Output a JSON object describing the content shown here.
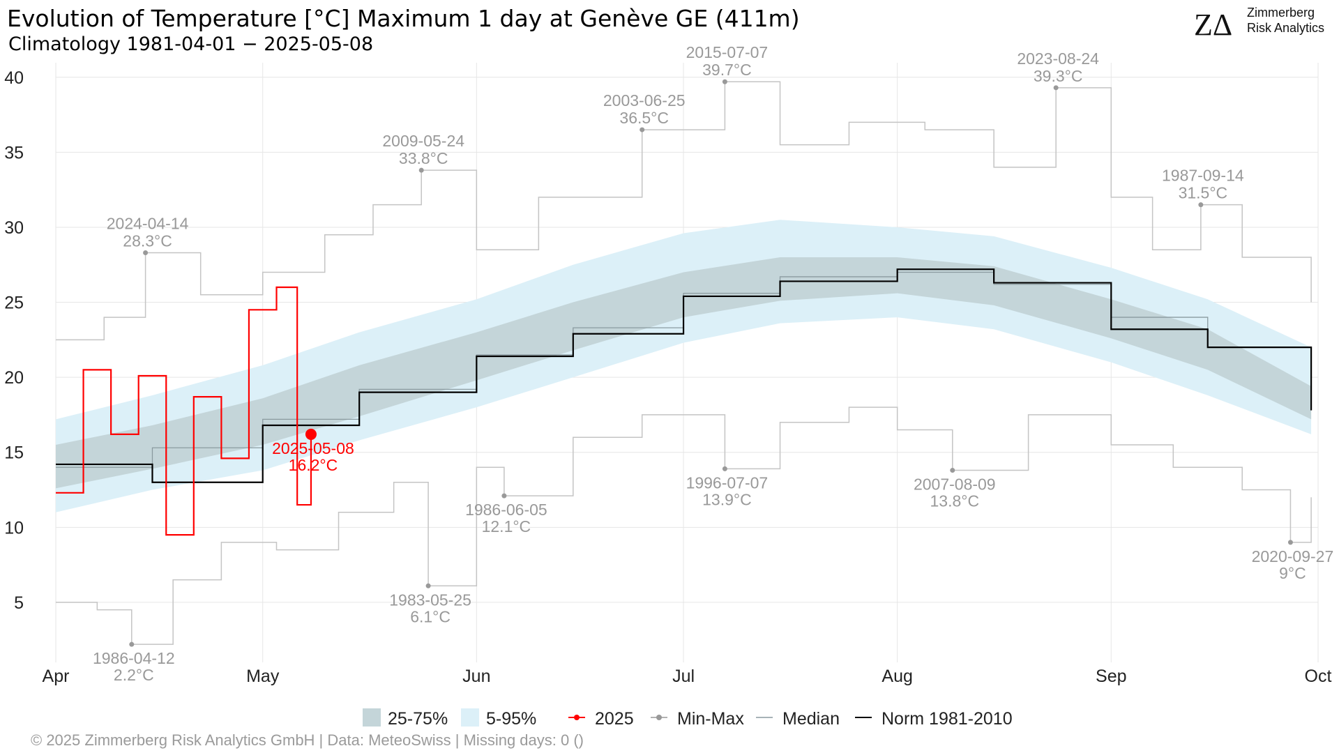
{
  "header": {
    "title": "Evolution of Temperature [°C] Maximum 1 day at Genève  GE (411m)",
    "subtitle": "Climatology 1981-04-01 − 2025-05-08",
    "logo_mark": "ZΔ",
    "logo_line1": "Zimmerberg",
    "logo_line2": "Risk Analytics"
  },
  "footer": {
    "caption": "©  2025 Zimmerberg Risk Analytics GmbH | Data: MeteoSwiss | Missing days: 0 ()"
  },
  "colors": {
    "band_25_75": "#c4d5d9",
    "band_5_95": "#dcf0f8",
    "current_year": "#ff0000",
    "minmax": "#c4c4c4",
    "minmax_dot": "#999999",
    "median": "#8a9a9f",
    "norm": "#000000",
    "annotation_text": "#999999",
    "grid": "#e6e6e6"
  },
  "chart_data": {
    "type": "line",
    "title": "Evolution of Temperature [°C] Maximum 1 day at Genève  GE (411m)",
    "subtitle": "Climatology 1981-04-01 − 2025-05-08",
    "xlabel": "",
    "ylabel": "",
    "x_range": [
      "2025-04-01",
      "2025-10-01"
    ],
    "ylim": [
      1,
      40.5
    ],
    "y_ticks": [
      5,
      10,
      15,
      20,
      25,
      30,
      35,
      40
    ],
    "x_ticks": [
      {
        "date": "2025-04-01",
        "label": "Apr"
      },
      {
        "date": "2025-05-01",
        "label": "May"
      },
      {
        "date": "2025-06-01",
        "label": "Jun"
      },
      {
        "date": "2025-07-01",
        "label": "Jul"
      },
      {
        "date": "2025-08-01",
        "label": "Aug"
      },
      {
        "date": "2025-09-01",
        "label": "Sep"
      },
      {
        "date": "2025-10-01",
        "label": "Oct"
      }
    ],
    "grid": true,
    "legend_position": "bottom",
    "legend": [
      {
        "key": "band_25_75",
        "label": "25-75%"
      },
      {
        "key": "band_5_95",
        "label": "5-95%"
      },
      {
        "key": "current",
        "label": "2025"
      },
      {
        "key": "minmax",
        "label": "Min-Max"
      },
      {
        "key": "median",
        "label": "Median"
      },
      {
        "key": "norm",
        "label": "Norm 1981-2010"
      }
    ],
    "series": [
      {
        "key": "current",
        "name": "2025",
        "x": [
          "2025-04-01",
          "2025-04-05",
          "2025-04-09",
          "2025-04-13",
          "2025-04-17",
          "2025-04-21",
          "2025-04-25",
          "2025-04-29",
          "2025-05-03",
          "2025-05-06",
          "2025-05-08"
        ],
        "y": [
          12.3,
          20.5,
          16.2,
          20.1,
          9.5,
          18.7,
          14.6,
          24.5,
          26.0,
          11.5,
          16.2
        ]
      },
      {
        "key": "norm",
        "name": "Norm 1981-2010",
        "x": [
          "2025-04-01",
          "2025-04-15",
          "2025-05-01",
          "2025-05-15",
          "2025-06-01",
          "2025-06-15",
          "2025-07-01",
          "2025-07-15",
          "2025-08-01",
          "2025-08-15",
          "2025-09-01",
          "2025-09-15",
          "2025-09-30"
        ],
        "y": [
          14.2,
          13.0,
          16.8,
          19.0,
          21.4,
          22.9,
          25.4,
          26.4,
          27.2,
          26.3,
          23.2,
          22.0,
          17.8
        ]
      },
      {
        "key": "median",
        "name": "Median",
        "x": [
          "2025-04-01",
          "2025-04-15",
          "2025-05-01",
          "2025-05-15",
          "2025-06-01",
          "2025-06-15",
          "2025-07-01",
          "2025-07-15",
          "2025-08-01",
          "2025-08-15",
          "2025-09-01",
          "2025-09-15",
          "2025-09-30"
        ],
        "y": [
          14.0,
          15.3,
          17.2,
          19.2,
          21.5,
          23.3,
          25.6,
          26.7,
          27.0,
          26.2,
          24.0,
          22.0,
          18.7
        ]
      },
      {
        "key": "max",
        "name": "Max",
        "x": [
          "2025-04-01",
          "2025-04-08",
          "2025-04-14",
          "2025-04-22",
          "2025-05-01",
          "2025-05-10",
          "2025-05-17",
          "2025-05-24",
          "2025-06-01",
          "2025-06-10",
          "2025-06-25",
          "2025-07-07",
          "2025-07-15",
          "2025-07-25",
          "2025-08-05",
          "2025-08-15",
          "2025-08-24",
          "2025-09-01",
          "2025-09-07",
          "2025-09-14",
          "2025-09-20",
          "2025-09-30"
        ],
        "y": [
          22.5,
          24.0,
          28.3,
          25.5,
          27.0,
          29.5,
          31.5,
          33.8,
          28.5,
          32.0,
          36.5,
          39.7,
          35.5,
          37.0,
          36.5,
          34.0,
          39.3,
          32.0,
          28.5,
          31.5,
          28.0,
          25.0
        ]
      },
      {
        "key": "min",
        "name": "Min",
        "x": [
          "2025-04-01",
          "2025-04-07",
          "2025-04-12",
          "2025-04-18",
          "2025-04-25",
          "2025-05-03",
          "2025-05-12",
          "2025-05-20",
          "2025-05-25",
          "2025-06-01",
          "2025-06-05",
          "2025-06-15",
          "2025-06-25",
          "2025-07-07",
          "2025-07-15",
          "2025-07-25",
          "2025-08-01",
          "2025-08-09",
          "2025-08-20",
          "2025-09-01",
          "2025-09-10",
          "2025-09-20",
          "2025-09-27",
          "2025-09-30"
        ],
        "y": [
          5.0,
          4.5,
          2.2,
          6.5,
          9.0,
          8.5,
          11.0,
          13.0,
          6.1,
          14.0,
          12.1,
          16.0,
          17.5,
          13.9,
          17.0,
          18.0,
          16.5,
          13.8,
          17.5,
          15.5,
          14.0,
          12.5,
          9.0,
          12.0
        ]
      }
    ],
    "bands": {
      "x": [
        "2025-04-01",
        "2025-04-15",
        "2025-05-01",
        "2025-05-15",
        "2025-06-01",
        "2025-06-15",
        "2025-07-01",
        "2025-07-15",
        "2025-08-01",
        "2025-08-15",
        "2025-09-01",
        "2025-09-15",
        "2025-09-30"
      ],
      "p05": [
        11.0,
        12.5,
        13.8,
        15.8,
        18.0,
        20.0,
        22.3,
        23.6,
        24.0,
        23.2,
        21.0,
        18.8,
        16.2
      ],
      "p25": [
        12.6,
        13.9,
        15.5,
        17.4,
        19.8,
        21.8,
        24.0,
        25.1,
        25.6,
        24.8,
        22.6,
        20.5,
        17.2
      ],
      "p75": [
        15.5,
        16.8,
        18.6,
        20.8,
        23.0,
        25.0,
        27.0,
        28.0,
        28.0,
        27.4,
        25.2,
        23.2,
        19.4
      ],
      "p95": [
        17.2,
        18.8,
        20.8,
        23.0,
        25.2,
        27.5,
        29.6,
        30.5,
        30.0,
        29.4,
        27.3,
        25.2,
        22.0
      ]
    },
    "annotations": [
      {
        "date": "2024-04-14",
        "value": "28.3°C",
        "x": "2025-04-14",
        "y": 28.3,
        "pos": "above",
        "color": "#999999"
      },
      {
        "date": "2009-05-24",
        "value": "33.8°C",
        "x": "2025-05-24",
        "y": 33.8,
        "pos": "above",
        "color": "#999999"
      },
      {
        "date": "2003-06-25",
        "value": "36.5°C",
        "x": "2025-06-25",
        "y": 36.5,
        "pos": "above",
        "color": "#999999"
      },
      {
        "date": "2015-07-07",
        "value": "39.7°C",
        "x": "2025-07-07",
        "y": 39.7,
        "pos": "above",
        "color": "#999999"
      },
      {
        "date": "2023-08-24",
        "value": "39.3°C",
        "x": "2025-08-24",
        "y": 39.3,
        "pos": "above",
        "color": "#999999"
      },
      {
        "date": "1987-09-14",
        "value": "31.5°C",
        "x": "2025-09-14",
        "y": 31.5,
        "pos": "above",
        "color": "#999999"
      },
      {
        "date": "1986-04-12",
        "value": "2.2°C",
        "x": "2025-04-12",
        "y": 2.2,
        "pos": "below",
        "color": "#999999"
      },
      {
        "date": "1983-05-25",
        "value": "6.1°C",
        "x": "2025-05-25",
        "y": 6.1,
        "pos": "below",
        "color": "#999999"
      },
      {
        "date": "1986-06-05",
        "value": "12.1°C",
        "x": "2025-06-05",
        "y": 12.1,
        "pos": "below",
        "color": "#999999"
      },
      {
        "date": "1996-07-07",
        "value": "13.9°C",
        "x": "2025-07-07",
        "y": 13.9,
        "pos": "below",
        "color": "#999999"
      },
      {
        "date": "2007-08-09",
        "value": "13.8°C",
        "x": "2025-08-09",
        "y": 13.8,
        "pos": "below",
        "color": "#999999"
      },
      {
        "date": "2020-09-27",
        "value": "9°C",
        "x": "2025-09-27",
        "y": 9.0,
        "pos": "below",
        "color": "#999999"
      },
      {
        "date": "2025-05-08",
        "value": "16.2°C",
        "x": "2025-05-08",
        "y": 16.2,
        "pos": "below",
        "color": "#ff0000"
      }
    ]
  }
}
